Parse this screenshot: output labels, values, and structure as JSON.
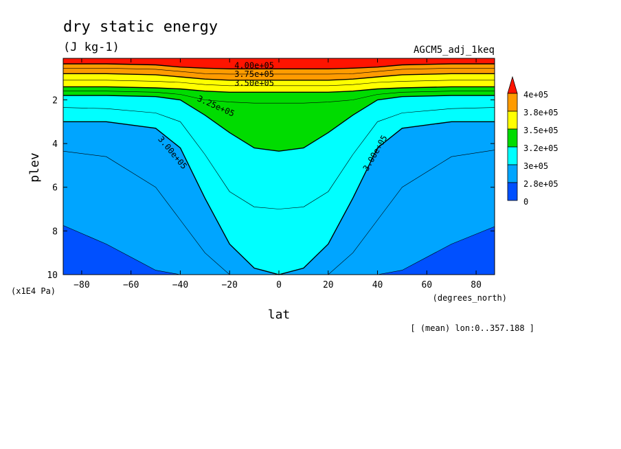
{
  "chart_data": {
    "type": "contour",
    "title": "dry static energy",
    "units": "(J kg-1)",
    "experiment": "AGCM5_adj_1keq",
    "xlabel": "lat",
    "x_units": "(degrees_north)",
    "ylabel": "plev",
    "y_units": "(x1E4 Pa)",
    "footnote": "[ (mean) lon:0..357.188 ]",
    "xlim": [
      -87.5,
      87.5
    ],
    "ylim": [
      10,
      0.1
    ],
    "x_ticks": [
      -80,
      -60,
      -40,
      -20,
      0,
      20,
      40,
      60,
      80
    ],
    "y_ticks": [
      2,
      4,
      6,
      8,
      10
    ],
    "colorbar": {
      "labels": [
        "4e+05",
        "3.8e+05",
        "3.5e+05",
        "3.2e+05",
        "3e+05",
        "2.8e+05",
        "0"
      ],
      "colors": [
        "#ff1400",
        "#ff9b00",
        "#ffff00",
        "#00dc00",
        "#00ffff",
        "#00a5ff",
        "#0050ff"
      ]
    },
    "contour_labels": [
      {
        "text": "4.00e+05",
        "lat": -10,
        "plev": 0.55
      },
      {
        "text": "3.75e+05",
        "lat": -10,
        "plev": 0.95
      },
      {
        "text": "3.50e+05",
        "lat": -10,
        "plev": 1.35
      },
      {
        "text": "3.25e+05",
        "lat": -26,
        "plev": 2.4
      },
      {
        "text": "3.00e+05",
        "lat": -44,
        "plev": 4.5
      },
      {
        "text": "3.00e+05",
        "lat": 40,
        "plev": 4.5
      }
    ],
    "contour_levels": [
      280000,
      290000,
      300000,
      312500,
      325000,
      337500,
      350000,
      362500,
      375000,
      387500,
      400000
    ],
    "contours_plev_by_lat": {
      "lat": [
        -87.5,
        -70,
        -50,
        -40,
        -30,
        -20,
        -10,
        0,
        10,
        20,
        30,
        40,
        50,
        70,
        87.5
      ],
      "levels": {
        "280000": [
          7.75,
          8.6,
          9.8,
          10.0,
          10.0,
          10.0,
          10.0,
          10.0,
          10.0,
          10.0,
          10.0,
          10.0,
          9.8,
          8.6,
          7.8
        ],
        "290000": [
          4.35,
          4.6,
          6.0,
          7.5,
          9.0,
          10.0,
          10.0,
          10.0,
          10.0,
          10.0,
          9.0,
          7.5,
          6.0,
          4.6,
          4.3
        ],
        "300000": [
          3.0,
          3.0,
          3.3,
          4.2,
          6.5,
          8.6,
          9.7,
          10.0,
          9.7,
          8.6,
          6.5,
          4.2,
          3.3,
          3.0,
          3.0
        ],
        "312500": [
          2.35,
          2.4,
          2.6,
          3.0,
          4.5,
          6.2,
          6.9,
          7.0,
          6.9,
          6.2,
          4.5,
          3.0,
          2.6,
          2.4,
          2.35
        ],
        "325000": [
          1.8,
          1.8,
          1.85,
          2.0,
          2.7,
          3.5,
          4.2,
          4.35,
          4.2,
          3.5,
          2.7,
          2.0,
          1.85,
          1.8,
          1.8
        ],
        "337500": [
          1.6,
          1.6,
          1.65,
          1.75,
          2.0,
          2.1,
          2.15,
          2.15,
          2.15,
          2.1,
          2.0,
          1.75,
          1.65,
          1.6,
          1.6
        ],
        "350000": [
          1.4,
          1.4,
          1.45,
          1.5,
          1.6,
          1.65,
          1.65,
          1.65,
          1.65,
          1.65,
          1.6,
          1.5,
          1.45,
          1.4,
          1.4
        ],
        "362500": [
          1.1,
          1.1,
          1.15,
          1.2,
          1.3,
          1.35,
          1.35,
          1.35,
          1.35,
          1.35,
          1.3,
          1.2,
          1.15,
          1.1,
          1.1
        ],
        "375000": [
          0.8,
          0.8,
          0.85,
          0.95,
          1.05,
          1.1,
          1.1,
          1.1,
          1.1,
          1.1,
          1.05,
          0.95,
          0.85,
          0.8,
          0.8
        ],
        "387500": [
          0.55,
          0.55,
          0.6,
          0.7,
          0.8,
          0.82,
          0.82,
          0.82,
          0.82,
          0.82,
          0.8,
          0.7,
          0.6,
          0.55,
          0.55
        ],
        "400000": [
          0.35,
          0.35,
          0.4,
          0.5,
          0.55,
          0.58,
          0.58,
          0.58,
          0.58,
          0.58,
          0.55,
          0.5,
          0.4,
          0.35,
          0.35
        ]
      }
    }
  }
}
